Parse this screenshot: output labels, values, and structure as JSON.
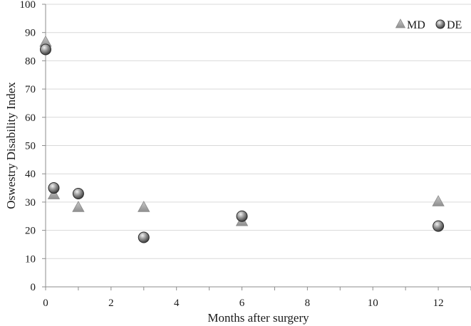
{
  "chart_data": {
    "type": "scatter",
    "title": "",
    "xlabel": "Months after surgery",
    "ylabel": "Oswestry Disability Index",
    "xlim": [
      0,
      13
    ],
    "ylim": [
      0,
      100
    ],
    "xticks": [
      0,
      2,
      4,
      6,
      8,
      10,
      12
    ],
    "yticks": [
      0,
      10,
      20,
      30,
      40,
      50,
      60,
      70,
      80,
      90,
      100
    ],
    "grid": "horizontal",
    "legend_position": "top-right",
    "series": [
      {
        "name": "MD",
        "marker": "triangle",
        "color": "#a6a6a6",
        "x": [
          0,
          0.25,
          1,
          3,
          6,
          12
        ],
        "y": [
          86.5,
          32.5,
          28,
          28,
          23,
          30
        ]
      },
      {
        "name": "DE",
        "marker": "circle",
        "color": "#7a7a7a",
        "x": [
          0,
          0.25,
          1,
          3,
          6,
          12
        ],
        "y": [
          84,
          35,
          33,
          17.5,
          25,
          21.5
        ]
      }
    ]
  }
}
